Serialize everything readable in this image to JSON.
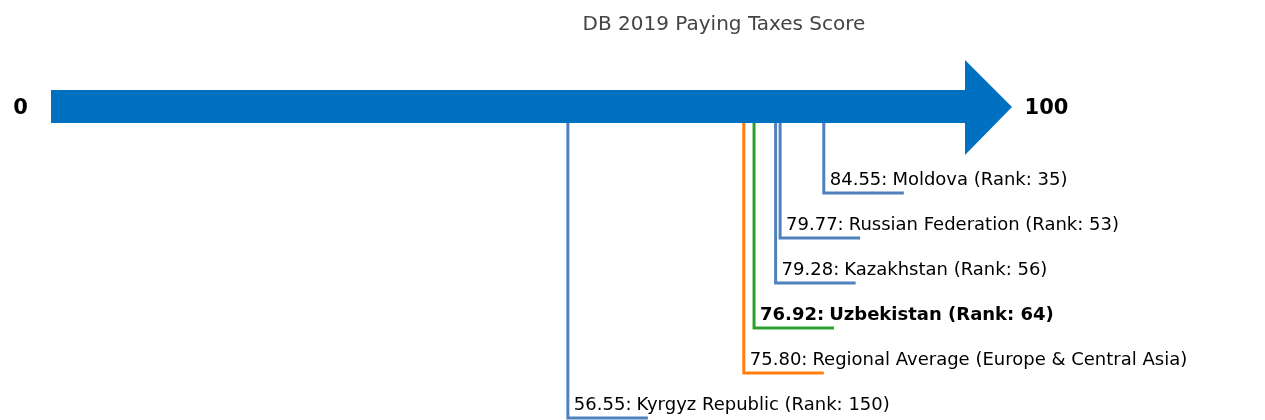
{
  "chart_data": {
    "type": "other",
    "title": "DB 2019 Paying Taxes Score",
    "annotations": [
      "0",
      "100"
    ],
    "color": "#0070c0",
    "value_labels": [
      "84.55:",
      "79.77:",
      "79.28:",
      "76.92:",
      "75.80:",
      "56.55:"
    ],
    "categories": [
      "Moldova (Rank: 35)",
      "Russian Federation (Rank: 53)",
      "Kazakhstan (Rank: 56)",
      "Uzbekistan (Rank: 64)",
      "Regional Average (Europe & Central Asia)",
      "Kyrgyz Republic (Rank: 150)"
    ],
    "values": [
      84.55,
      79.77,
      79.28,
      76.92,
      75.8,
      56.55
    ],
    "colors": [
      "#4f81bd",
      "#4f81bd",
      "#4f81bd",
      "#2ca02c",
      "#ff7f0e",
      "#4f81bd"
    ]
  }
}
